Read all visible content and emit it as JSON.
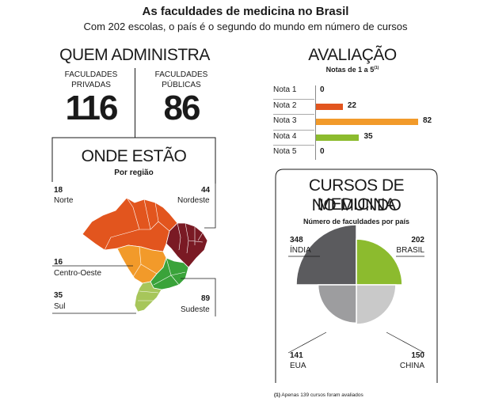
{
  "header": {
    "title": "As faculdades de medicina no Brasil",
    "subtitle": "Com 202 escolas, o país é o segundo do mundo em número de cursos"
  },
  "admin": {
    "heading": "QUEM ADMINISTRA",
    "private_label_1": "FACULDADES",
    "private_label_2": "PRIVADAS",
    "private_value": "116",
    "public_label_1": "FACULDADES",
    "public_label_2": "PÚBLICAS",
    "public_value": "86"
  },
  "regions": {
    "heading": "ONDE ESTÃO",
    "subheading": "Por região",
    "items": [
      {
        "name": "Norte",
        "value": "18",
        "color": "#e2551e"
      },
      {
        "name": "Nordeste",
        "value": "44",
        "color": "#7a1a24"
      },
      {
        "name": "Centro-Oeste",
        "value": "16",
        "color": "#f29a2a"
      },
      {
        "name": "Sul",
        "value": "35",
        "color": "#a7c65a"
      },
      {
        "name": "Sudeste",
        "value": "89",
        "color": "#3aa33a"
      }
    ]
  },
  "evaluation": {
    "heading": "AVALIAÇÃO",
    "subheading": "Notas de 1 a 5",
    "footnote_marker": "(1)"
  },
  "world": {
    "heading_1": "CURSOS DE MEDICINA",
    "heading_2": "NO MUNDO",
    "subheading": "Número de faculdades por país"
  },
  "footnote": {
    "marker": "(1)",
    "text": "Apenas 139 cursos foram avaliados"
  },
  "chart_data": [
    {
      "type": "bar",
      "title": "AVALIAÇÃO",
      "subtitle": "Notas de 1 a 5",
      "categories": [
        "Nota 1",
        "Nota 2",
        "Nota 3",
        "Nota 4",
        "Nota 5"
      ],
      "values": [
        0,
        22,
        82,
        35,
        0
      ],
      "colors": [
        "#cccccc",
        "#e2551e",
        "#f29a2a",
        "#8cbb2e",
        "#cccccc"
      ],
      "xlim": [
        0,
        82
      ]
    },
    {
      "type": "pie",
      "title": "CURSOS DE MEDICINA NO MUNDO",
      "subtitle": "Número de faculdades por país",
      "style": "polar-area",
      "slices": [
        {
          "label": "ÍNDIA",
          "value": 348,
          "color": "#5b5b5e"
        },
        {
          "label": "BRASIL",
          "value": 202,
          "color": "#8cbb2e"
        },
        {
          "label": "CHINA",
          "value": 150,
          "color": "#c9c9c9"
        },
        {
          "label": "EUA",
          "value": 141,
          "color": "#9d9d9f"
        }
      ]
    },
    {
      "type": "table",
      "title": "ONDE ESTÃO",
      "subtitle": "Por região",
      "categories": [
        "Norte",
        "Nordeste",
        "Centro-Oeste",
        "Sul",
        "Sudeste"
      ],
      "values": [
        18,
        44,
        16,
        35,
        89
      ]
    }
  ]
}
